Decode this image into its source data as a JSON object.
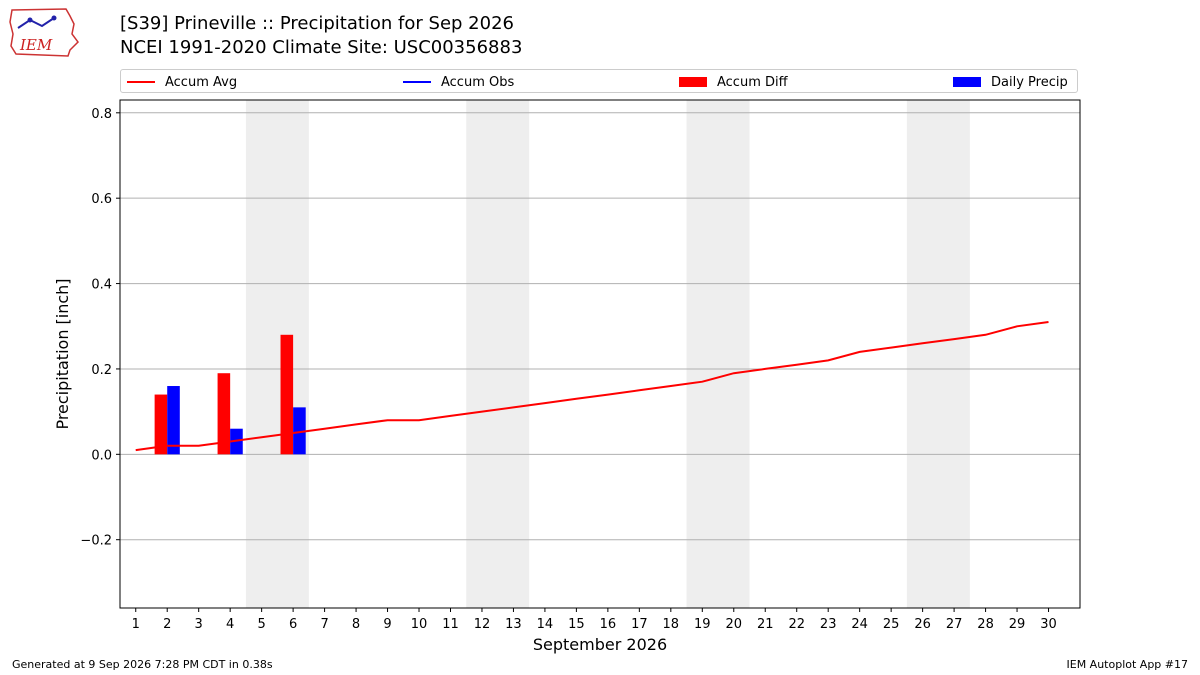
{
  "header": {
    "logo_text": "IEM",
    "title_line1": "[S39] Prineville :: Precipitation for Sep 2026",
    "title_line2": "NCEI 1991-2020 Climate Site: USC00356883"
  },
  "legend": {
    "accum_avg": "Accum Avg",
    "accum_obs": "Accum Obs",
    "accum_diff": "Accum Diff",
    "daily_precip": "Daily Precip"
  },
  "colors": {
    "accum_avg": "#ff0000",
    "accum_obs": "#0000ff",
    "accum_diff": "#ff0000",
    "daily_precip": "#0000ff",
    "weekend_shade": "#eeeeee",
    "grid": "#b0b0b0"
  },
  "footer": {
    "left": "Generated at 9 Sep 2026 7:28 PM CDT in 0.38s",
    "right": "IEM Autoplot App #17"
  },
  "chart_data": {
    "type": "bar",
    "xlabel": "September 2026",
    "ylabel": "Precipitation [inch]",
    "xlim": [
      0.5,
      31
    ],
    "ylim": [
      -0.36,
      0.83
    ],
    "yticks": [
      -0.2,
      0.0,
      0.2,
      0.4,
      0.6,
      0.8
    ],
    "ytick_labels": [
      "−0.2",
      "0.0",
      "0.2",
      "0.4",
      "0.6",
      "0.8"
    ],
    "x": [
      1,
      2,
      3,
      4,
      5,
      6,
      7,
      8,
      9,
      10,
      11,
      12,
      13,
      14,
      15,
      16,
      17,
      18,
      19,
      20,
      21,
      22,
      23,
      24,
      25,
      26,
      27,
      28,
      29,
      30
    ],
    "weekend_spans": [
      [
        4.5,
        6.5
      ],
      [
        11.5,
        13.5
      ],
      [
        18.5,
        20.5
      ],
      [
        25.5,
        27.5
      ]
    ],
    "grid": true,
    "legend_position": "top",
    "series": [
      {
        "name": "Accum Avg",
        "kind": "line",
        "x": [
          1,
          2,
          3,
          4,
          5,
          6,
          7,
          8,
          9,
          10,
          11,
          12,
          13,
          14,
          15,
          16,
          17,
          18,
          19,
          20,
          21,
          22,
          23,
          24,
          25,
          26,
          27,
          28,
          29,
          30
        ],
        "values": [
          0.01,
          0.02,
          0.02,
          0.03,
          0.04,
          0.05,
          0.06,
          0.07,
          0.08,
          0.08,
          0.09,
          0.1,
          0.11,
          0.12,
          0.13,
          0.14,
          0.15,
          0.16,
          0.17,
          0.19,
          0.2,
          0.21,
          0.22,
          0.24,
          0.25,
          0.26,
          0.27,
          0.28,
          0.3,
          0.31
        ]
      },
      {
        "name": "Accum Obs",
        "kind": "line",
        "x": [],
        "values": []
      },
      {
        "name": "Accum Diff",
        "kind": "bar",
        "offset": -0.2,
        "x": [
          2,
          4,
          6
        ],
        "values": [
          0.14,
          0.19,
          0.28
        ]
      },
      {
        "name": "Daily Precip",
        "kind": "bar",
        "offset": 0.2,
        "x": [
          2,
          4,
          6
        ],
        "values": [
          0.16,
          0.06,
          0.11
        ]
      }
    ]
  }
}
